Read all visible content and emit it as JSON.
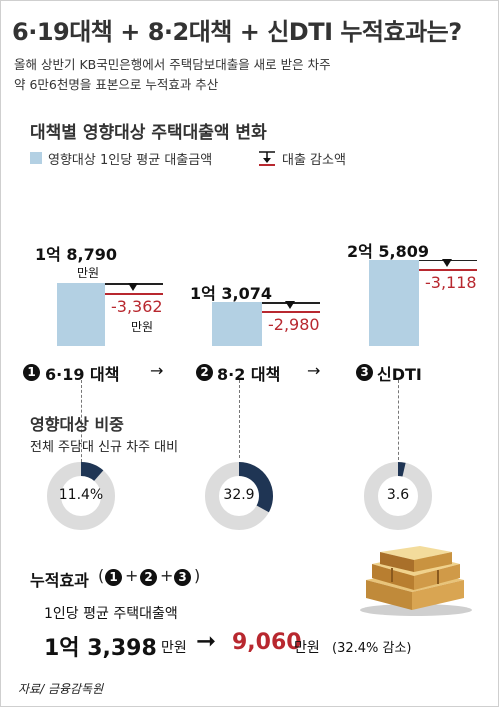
{
  "headline": "6·19대책 + 8·2대책 + 신DTI 누적효과는?",
  "subtitle_line1": "올해 상반기 KB국민은행에서 주택담보대출을 새로 받은 차주",
  "subtitle_line2": "약 6만6천명을 표본으로 누적효과 추산",
  "section1_title": "대책별 영향대상 주택대출액 변화",
  "legend": {
    "avg_loan": "영향대상 1인당 평균 대출금액",
    "reduction": "대출 감소액"
  },
  "colors": {
    "bar": "#b3d0e3",
    "reduction": "#b8282f",
    "donut_bg": "#dcdcdc",
    "donut_fill": "#1f3554"
  },
  "chart_data": [
    {
      "type": "bar",
      "title": "대책별 영향대상 주택대출액 변화",
      "unit": "만원",
      "categories": [
        "6·19 대책",
        "8·2 대책",
        "신DTI"
      ],
      "series": [
        {
          "name": "영향대상 1인당 평균 대출금액",
          "values": [
            18790,
            13074,
            25809
          ]
        },
        {
          "name": "대출 감소액",
          "values": [
            -3362,
            -2980,
            -3118
          ]
        }
      ],
      "value_labels": [
        {
          "amount_line1": "1억 8,790",
          "amount_line2": "만원",
          "reduction": "-3,362",
          "reduction_unit": "만원"
        },
        {
          "amount_line1": "1억 3,074",
          "amount_line2": "",
          "reduction": "-2,980",
          "reduction_unit": ""
        },
        {
          "amount_line1": "2억 5,809",
          "amount_line2": "",
          "reduction": "-3,118",
          "reduction_unit": ""
        }
      ]
    },
    {
      "type": "pie",
      "title": "영향대상 비중",
      "subtitle": "전체 주담대 신규 차주 대비",
      "categories": [
        "6·19 대책",
        "8·2 대책",
        "신DTI"
      ],
      "values": [
        11.4,
        32.9,
        3.6
      ],
      "value_labels": [
        "11.4%",
        "32.9",
        "3.6"
      ]
    }
  ],
  "stages": [
    {
      "num": "1",
      "label": "6·19 대책"
    },
    {
      "num": "2",
      "label": "8·2 대책"
    },
    {
      "num": "3",
      "label": "신DTI"
    }
  ],
  "stage_arrow": "→",
  "section2_title": "영향대상 비중",
  "section2_sub": "전체 주담대 신규 차주 대비",
  "cumulative": {
    "title": "누적효과",
    "paren_open": "(",
    "paren_close": ")",
    "plus": "+",
    "desc": "1인당 평균 주택대출액",
    "before_a": "1억 3,398",
    "before_unit": "만원",
    "arrow": "➞",
    "after_a": "9,060",
    "after_unit": "만원",
    "after_note": "(32.4% 감소)"
  },
  "source": "자료/ 금융감독원"
}
